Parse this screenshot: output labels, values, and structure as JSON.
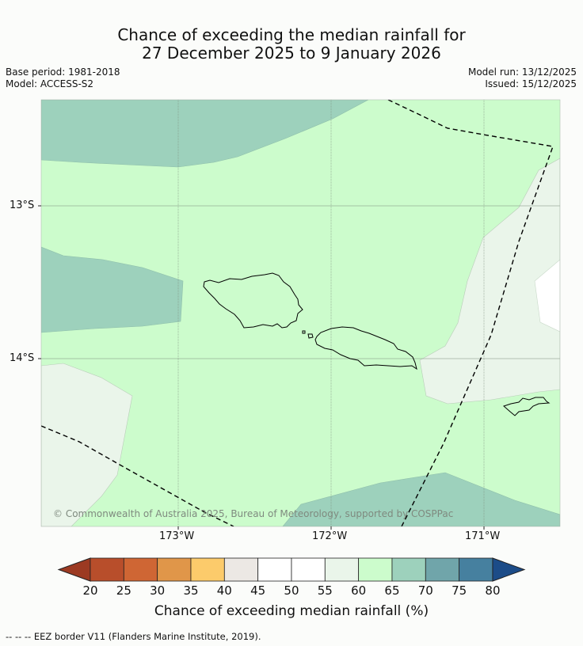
{
  "title": {
    "line1": "Chance of exceeding the median rainfall for",
    "line2": "27 December 2025 to 9 January 2026"
  },
  "meta": {
    "base_period": "Base period: 1981-2018",
    "model": "Model: ACCESS-S2",
    "model_run": "Model run: 13/12/2025",
    "issued": "Issued: 15/12/2025"
  },
  "map": {
    "lat_labels": [
      "13°S",
      "14°S"
    ],
    "lon_labels": [
      "173°W",
      "172°W",
      "171°W"
    ],
    "copyright": "© Commonwealth of Australia 2025, Bureau of Meteorology, supported by COSPPac"
  },
  "colorbar": {
    "title": "Chance of exceeding median rainfall (%)",
    "ticks": [
      "20",
      "25",
      "30",
      "35",
      "40",
      "45",
      "50",
      "55",
      "60",
      "65",
      "70",
      "75",
      "80"
    ],
    "colors": {
      "lt20": "#9c3a22",
      "c20_25": "#b84e2b",
      "c25_30": "#cf6634",
      "c30_35": "#e09649",
      "c35_40": "#fccb6b",
      "c40_45": "#ece8e4",
      "c45_50": "#ffffff",
      "c50_55": "#ffffff",
      "c55_60": "#eaf5ea",
      "c60_65": "#ccfccc",
      "c65_70": "#9dd1bc",
      "c70_75": "#70a5aa",
      "c75_80": "#46809f",
      "gt80": "#1c4c88"
    }
  },
  "footer": "--  --  -- EEZ border V11 (Flanders Marine Institute, 2019)."
}
